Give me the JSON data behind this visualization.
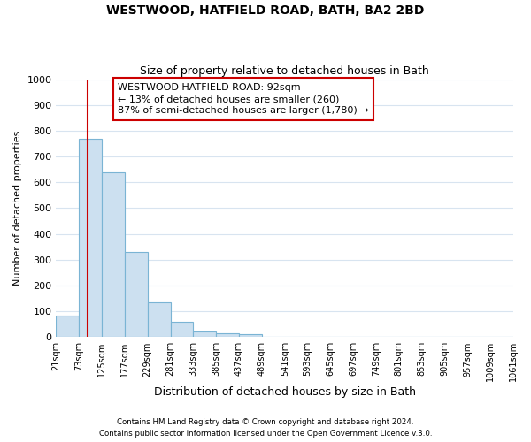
{
  "title": "WESTWOOD, HATFIELD ROAD, BATH, BA2 2BD",
  "subtitle": "Size of property relative to detached houses in Bath",
  "xlabel": "Distribution of detached houses by size in Bath",
  "ylabel": "Number of detached properties",
  "bar_values": [
    85,
    770,
    640,
    330,
    135,
    60,
    22,
    15,
    10,
    0,
    0,
    0,
    0,
    0,
    0,
    0,
    0,
    0,
    0,
    0
  ],
  "bin_edges": [
    21,
    73,
    125,
    177,
    229,
    281,
    333,
    385,
    437,
    489,
    541,
    593,
    645,
    697,
    749,
    801,
    853,
    905,
    957,
    1009,
    1061
  ],
  "tick_labels": [
    "21sqm",
    "73sqm",
    "125sqm",
    "177sqm",
    "229sqm",
    "281sqm",
    "333sqm",
    "385sqm",
    "437sqm",
    "489sqm",
    "541sqm",
    "593sqm",
    "645sqm",
    "697sqm",
    "749sqm",
    "801sqm",
    "853sqm",
    "905sqm",
    "957sqm",
    "1009sqm",
    "1061sqm"
  ],
  "bar_color": "#cce0f0",
  "bar_edge_color": "#7ab4d4",
  "vline_x": 92,
  "vline_color": "#cc0000",
  "annotation_line1": "WESTWOOD HATFIELD ROAD: 92sqm",
  "annotation_line2": "← 13% of detached houses are smaller (260)",
  "annotation_line3": "87% of semi-detached houses are larger (1,780) →",
  "annotation_box_color": "#ffffff",
  "annotation_box_edge": "#cc0000",
  "ylim": [
    0,
    1000
  ],
  "yticks": [
    0,
    100,
    200,
    300,
    400,
    500,
    600,
    700,
    800,
    900,
    1000
  ],
  "footer1": "Contains HM Land Registry data © Crown copyright and database right 2024.",
  "footer2": "Contains public sector information licensed under the Open Government Licence v.3.0.",
  "background_color": "#ffffff",
  "grid_color": "#d8e4f0",
  "title_fontsize": 10,
  "subtitle_fontsize": 9,
  "ylabel_fontsize": 8,
  "xlabel_fontsize": 9,
  "annot_fontsize": 8,
  "ytick_fontsize": 8,
  "xtick_fontsize": 7
}
